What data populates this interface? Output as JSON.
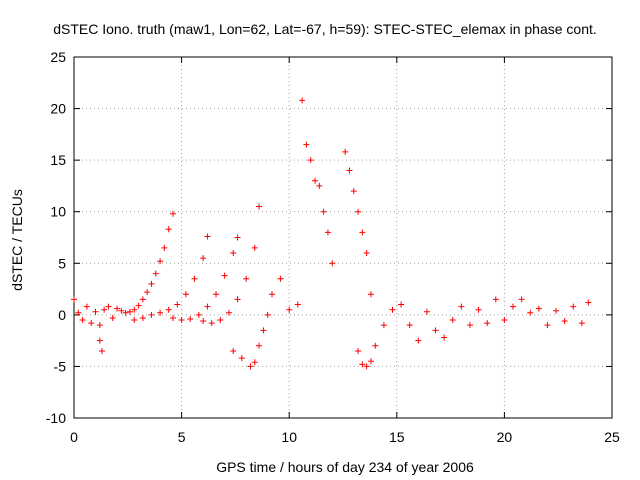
{
  "chart_data": {
    "type": "scatter",
    "title": "dSTEC Iono. truth (maw1, Lon=62, Lat=-67, h=59): STEC-STEC_elemax in phase cont.",
    "xlabel": "GPS time / hours of day 234 of year 2006",
    "ylabel": "dSTEC  / TECUs",
    "xlim": [
      0,
      25
    ],
    "ylim": [
      -10,
      25
    ],
    "xticks": [
      "0",
      "5",
      "10",
      "15",
      "20",
      "25"
    ],
    "yticks": [
      "-10",
      "-5",
      "0",
      "5",
      "10",
      "15",
      "20",
      "25"
    ],
    "grid": true,
    "marker": "plus",
    "color": "#ff0000",
    "series": [
      {
        "values_desc": "satellite arcs",
        "x": [
          0.0,
          0.2,
          0.4,
          0.6,
          0.8,
          1.0,
          1.2,
          1.4,
          1.6,
          1.8,
          2.0,
          2.2,
          2.4,
          2.6,
          2.8,
          3.0,
          3.2,
          3.4,
          3.6,
          3.8,
          4.0,
          4.2,
          4.4,
          4.6,
          2.8,
          3.2,
          3.6,
          4.0,
          4.4,
          4.8,
          5.2,
          5.6,
          6.0,
          6.2,
          4.6,
          5.0,
          5.4,
          5.8,
          6.2,
          6.6,
          7.0,
          7.4,
          7.6,
          6.0,
          6.4,
          6.8,
          7.2,
          7.6,
          8.0,
          8.4,
          8.6,
          7.4,
          7.8,
          8.2,
          8.4,
          8.6,
          8.8,
          9.0,
          9.2,
          9.6,
          10.0,
          10.4,
          10.6,
          10.8,
          11.0,
          11.2,
          11.4,
          11.6,
          11.8,
          12.0,
          12.6,
          12.8,
          13.0,
          13.2,
          13.4,
          13.6,
          13.8,
          13.2,
          13.4,
          13.6,
          13.8,
          14.0,
          14.4,
          14.8,
          15.2,
          15.6,
          16.0,
          16.4,
          16.8,
          17.2,
          17.6,
          18.0,
          18.4,
          18.8,
          19.2,
          19.6,
          20.0,
          20.4,
          20.8,
          21.2,
          21.6,
          22.0,
          22.4,
          22.8,
          23.2,
          23.6,
          23.9,
          1.2,
          1.3
        ],
        "y": [
          1.5,
          0.2,
          -0.5,
          0.8,
          -0.8,
          0.3,
          -1.0,
          0.5,
          0.8,
          -0.3,
          0.6,
          0.4,
          0.2,
          0.3,
          0.5,
          0.9,
          1.5,
          2.2,
          3.0,
          4.0,
          5.2,
          6.5,
          8.3,
          9.8,
          -0.5,
          -0.3,
          0.0,
          0.2,
          0.5,
          1.0,
          2.0,
          3.5,
          5.5,
          7.6,
          -0.3,
          -0.5,
          -0.4,
          0.0,
          0.8,
          2.0,
          3.8,
          6.0,
          7.5,
          -0.6,
          -0.8,
          -0.5,
          0.2,
          1.5,
          3.5,
          6.5,
          10.5,
          -3.5,
          -4.2,
          -5.0,
          -4.6,
          -3.0,
          -1.5,
          0.0,
          2.0,
          3.5,
          0.5,
          1.0,
          20.8,
          16.5,
          15.0,
          13.0,
          12.5,
          10.0,
          8.0,
          5.0,
          15.8,
          14.0,
          12.0,
          10.0,
          8.0,
          6.0,
          2.0,
          -3.5,
          -4.8,
          -5.0,
          -4.5,
          -3.0,
          -1.0,
          0.5,
          1.0,
          -1.0,
          -2.5,
          0.3,
          -1.5,
          -2.2,
          -0.5,
          0.8,
          -1.0,
          0.5,
          -0.8,
          1.5,
          -0.5,
          0.8,
          1.5,
          0.2,
          0.6,
          -1.0,
          0.4,
          -0.6,
          0.8,
          -0.8,
          1.2,
          -2.5,
          -3.5
        ]
      }
    ]
  }
}
